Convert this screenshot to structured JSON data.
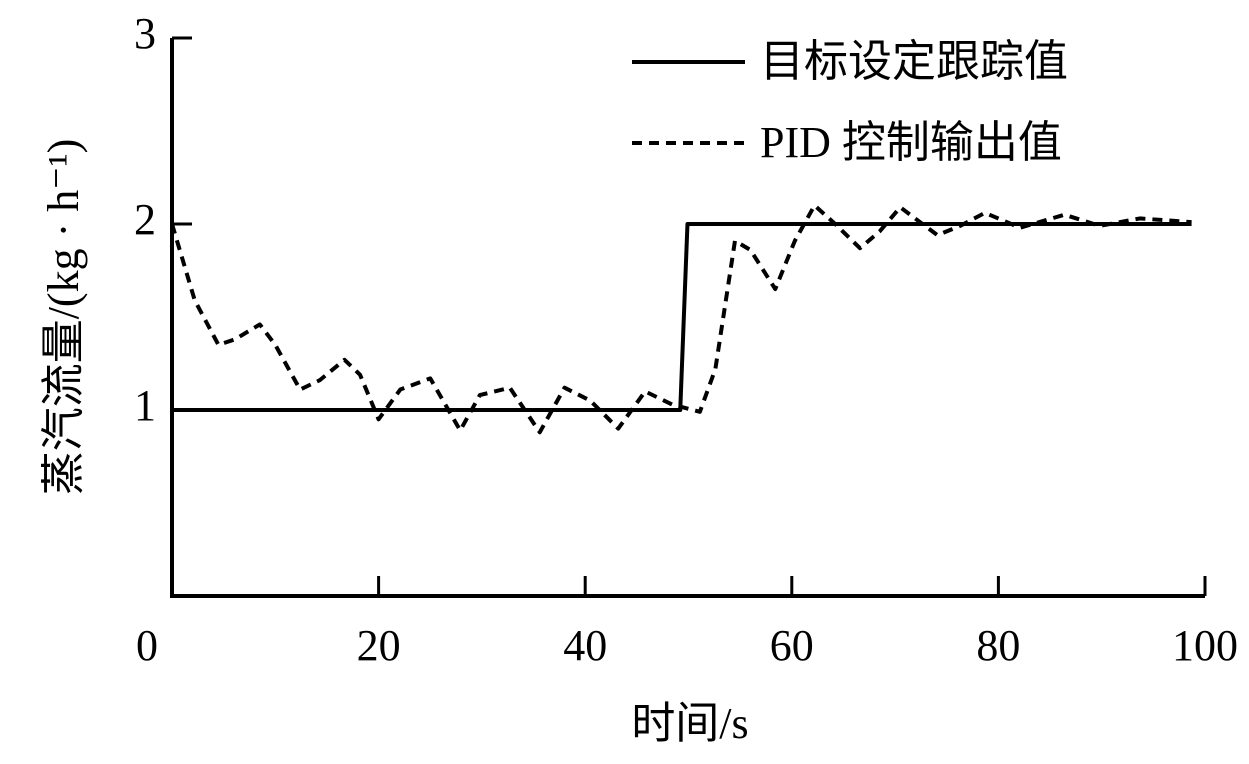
{
  "chart_data": {
    "type": "line",
    "x_label": "时间/s",
    "y_label": "蒸汽流量/(kg · h⁻¹)",
    "xlim": [
      0,
      100
    ],
    "xticks": [
      0,
      20,
      40,
      60,
      80,
      100
    ],
    "ylim": [
      0,
      3
    ],
    "yticks": [
      1,
      2,
      3
    ],
    "legend": "upper right",
    "series": [
      {
        "name": "目标设定跟踪值",
        "color": "#000000",
        "style": "solid",
        "x": [
          0,
          49.2,
          49.9,
          98.7
        ],
        "values": [
          1,
          1,
          2,
          2
        ]
      },
      {
        "name": "PID 控制输出值",
        "color": "#000000",
        "style": "dashed",
        "x": [
          0,
          2.2,
          4.5,
          6.1,
          8.5,
          10,
          12.4,
          14.3,
          16.7,
          18.2,
          20,
          22.1,
          25,
          27.9,
          29.8,
          32.7,
          35.6,
          38,
          40.5,
          43.2,
          45.8,
          48.4,
          51.1,
          52.6,
          54.5,
          56,
          58.4,
          60.3,
          62.2,
          64.2,
          66.6,
          68.5,
          70.5,
          74.1,
          76.3,
          78.7,
          82.1,
          86.4,
          89.8,
          93.7,
          98.7
        ],
        "values": [
          2.0,
          1.59,
          1.35,
          1.38,
          1.46,
          1.35,
          1.11,
          1.16,
          1.27,
          1.19,
          0.95,
          1.11,
          1.17,
          0.89,
          1.08,
          1.12,
          0.88,
          1.12,
          1.05,
          0.9,
          1.1,
          1.03,
          0.99,
          1.22,
          1.91,
          1.86,
          1.65,
          1.91,
          2.1,
          2.0,
          1.87,
          1.96,
          2.09,
          1.94,
          1.99,
          2.06,
          1.98,
          2.05,
          1.99,
          2.03,
          2.01
        ]
      }
    ]
  }
}
